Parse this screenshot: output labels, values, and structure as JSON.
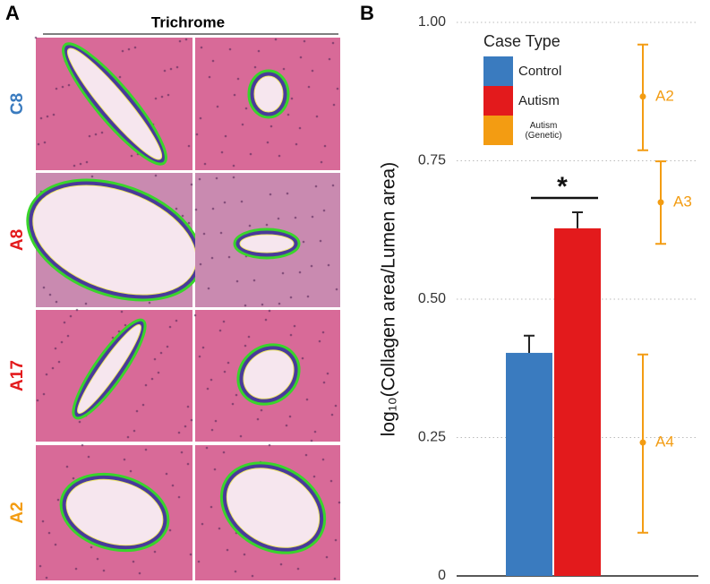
{
  "panel_a": {
    "label": "A",
    "title": "Trichrome",
    "rows": [
      {
        "label": "C8",
        "color": "#3a7bbf"
      },
      {
        "label": "A8",
        "color": "#e31a1c"
      },
      {
        "label": "A17",
        "color": "#e31a1c"
      },
      {
        "label": "A2",
        "color": "#f39c12"
      }
    ]
  },
  "chart_data": {
    "type": "bar",
    "panel_label": "B",
    "ylabel": "log₁₀(Collagen area/Lumen area)",
    "ylim": [
      0,
      1
    ],
    "yticks": [
      0,
      0.25,
      {
        "value": 0.5,
        "label": "0.50"
      },
      0.75,
      {
        "value": 1,
        "label": "1.00"
      }
    ],
    "grid": true,
    "legend_title": "Case Type",
    "annotation": "*",
    "series": [
      {
        "name": "Control",
        "color": "#3a7bbf",
        "values": [
          0.403
        ],
        "errors": [
          0.031
        ]
      },
      {
        "name": "Autism",
        "color": "#e31a1c",
        "values": [
          0.628
        ],
        "errors": [
          0.029
        ]
      },
      {
        "name": "Autism (Genetic)",
        "color": "#f39c12",
        "labels": [
          "A2",
          "A3",
          "A4"
        ],
        "values": [
          0.866,
          0.675,
          0.241
        ],
        "lows": [
          0.769,
          0.6,
          0.078
        ],
        "highs": [
          0.96,
          0.749,
          0.4
        ]
      }
    ]
  }
}
